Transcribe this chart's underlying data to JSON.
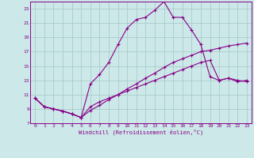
{
  "xlabel": "Windchill (Refroidissement éolien,°C)",
  "bg_color": "#cce8e8",
  "line_color": "#880088",
  "grid_color": "#aacccc",
  "xlim": [
    -0.5,
    23.5
  ],
  "ylim": [
    7,
    24
  ],
  "yticks": [
    7,
    9,
    11,
    13,
    15,
    17,
    19,
    21,
    23
  ],
  "xticks": [
    0,
    1,
    2,
    3,
    4,
    5,
    6,
    7,
    8,
    9,
    10,
    11,
    12,
    13,
    14,
    15,
    16,
    17,
    18,
    19,
    20,
    21,
    22,
    23
  ],
  "curve1_x": [
    0,
    1,
    2,
    3,
    4,
    5,
    6,
    7,
    8,
    9,
    10,
    11,
    12,
    13,
    14,
    15,
    16,
    17,
    18,
    19,
    20,
    21,
    22,
    23
  ],
  "curve1_y": [
    10.5,
    9.3,
    9.0,
    8.7,
    8.3,
    7.8,
    8.8,
    9.5,
    10.3,
    11.0,
    11.8,
    12.5,
    13.3,
    14.0,
    14.8,
    15.5,
    16.0,
    16.5,
    17.0,
    17.2,
    17.5,
    17.8,
    18.0,
    18.2
  ],
  "curve2_x": [
    0,
    1,
    2,
    3,
    4,
    5,
    6,
    7,
    8,
    9,
    10,
    11,
    12,
    13,
    14,
    15,
    16,
    17,
    18,
    19,
    20,
    21,
    22,
    23
  ],
  "curve2_y": [
    10.5,
    9.3,
    9.0,
    8.7,
    8.3,
    7.8,
    12.5,
    13.8,
    15.5,
    18.0,
    20.3,
    21.5,
    21.8,
    22.8,
    24.0,
    21.8,
    21.8,
    20.0,
    18.0,
    13.5,
    13.0,
    13.3,
    12.8,
    13.0
  ],
  "curve3_x": [
    0,
    1,
    2,
    3,
    4,
    5,
    6,
    7,
    8,
    9,
    10,
    11,
    12,
    13,
    14,
    15,
    16,
    17,
    18,
    19,
    20,
    21,
    22,
    23
  ],
  "curve3_y": [
    10.5,
    9.3,
    9.0,
    8.7,
    8.3,
    7.8,
    9.3,
    10.0,
    10.5,
    11.0,
    11.5,
    12.0,
    12.5,
    13.0,
    13.5,
    14.0,
    14.5,
    15.0,
    15.5,
    15.8,
    13.0,
    13.3,
    13.0,
    12.8
  ]
}
